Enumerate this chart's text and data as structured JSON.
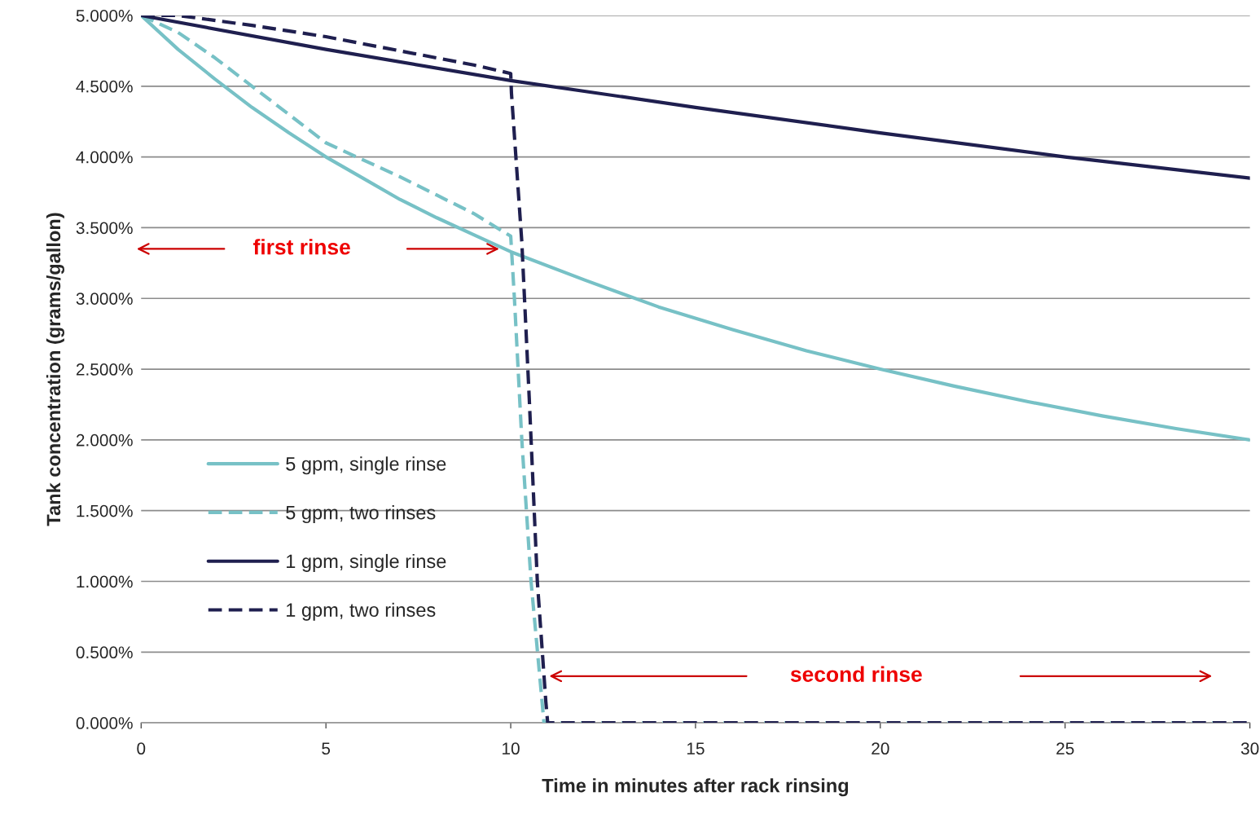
{
  "chart_data": {
    "type": "line",
    "xlabel": "Time in minutes after rack rinsing",
    "ylabel": "Tank concentration (grams/gallon)",
    "xlim": [
      0,
      30
    ],
    "xticks": [
      0,
      5,
      10,
      15,
      20,
      25,
      30
    ],
    "ylim": [
      0,
      5
    ],
    "yticks": [
      {
        "value": 0,
        "label": "0.000%"
      },
      {
        "value": 0.5,
        "label": "0.500%"
      },
      {
        "value": 1,
        "label": "1.000%"
      },
      {
        "value": 1.5,
        "label": "1.500%"
      },
      {
        "value": 2,
        "label": "2.000%"
      },
      {
        "value": 2.5,
        "label": "2.500%"
      },
      {
        "value": 3,
        "label": "3.000%"
      },
      {
        "value": 3.5,
        "label": "3.500%"
      },
      {
        "value": 4,
        "label": "4.000%"
      },
      {
        "value": 4.5,
        "label": "4.500%"
      },
      {
        "value": 5,
        "label": "5.000%"
      }
    ],
    "grid": "y",
    "legend": "bottom left",
    "marker": "none",
    "series": [
      {
        "name": "5 gpm, single rinse",
        "color": "#77c1c6",
        "line_style": "solid",
        "x": [
          0,
          1,
          2,
          3,
          4,
          5,
          6,
          7,
          8,
          9,
          10,
          12,
          14,
          16,
          18,
          20,
          22,
          24,
          26,
          28,
          30
        ],
        "values": [
          5.0,
          4.76,
          4.55,
          4.35,
          4.17,
          4.0,
          3.85,
          3.7,
          3.57,
          3.45,
          3.33,
          3.13,
          2.94,
          2.78,
          2.63,
          2.5,
          2.38,
          2.27,
          2.17,
          2.08,
          2.0
        ]
      },
      {
        "name": "5 gpm, two rinses",
        "color": "#77c1c6",
        "line_style": "dashed",
        "x": [
          0,
          1,
          2,
          3,
          4,
          5,
          6,
          7,
          8,
          9,
          10,
          10.1,
          10.3,
          10.55,
          10.9,
          30
        ],
        "values": [
          5.0,
          4.88,
          4.7,
          4.5,
          4.3,
          4.1,
          3.98,
          3.86,
          3.73,
          3.6,
          3.44,
          3.0,
          2.0,
          1.0,
          0,
          0
        ]
      },
      {
        "name": "1 gpm, single rinse",
        "color": "#1f1f4f",
        "line_style": "solid",
        "x": [
          0,
          5,
          10,
          15,
          20,
          25,
          30
        ],
        "values": [
          5.0,
          4.76,
          4.54,
          4.35,
          4.17,
          4.0,
          3.85
        ]
      },
      {
        "name": "1 gpm, two rinses",
        "color": "#1f1f4f",
        "line_style": "dashed",
        "x": [
          0,
          1,
          3,
          5,
          7,
          9,
          10,
          10.02,
          10.3,
          10.5,
          10.72,
          10.95,
          11,
          30
        ],
        "values": [
          5.0,
          5.0,
          4.93,
          4.85,
          4.75,
          4.65,
          4.59,
          4.45,
          3.4,
          2.3,
          1.0,
          0.15,
          0,
          0
        ]
      }
    ],
    "annotations": [
      "first rinse",
      "second rinse"
    ]
  }
}
